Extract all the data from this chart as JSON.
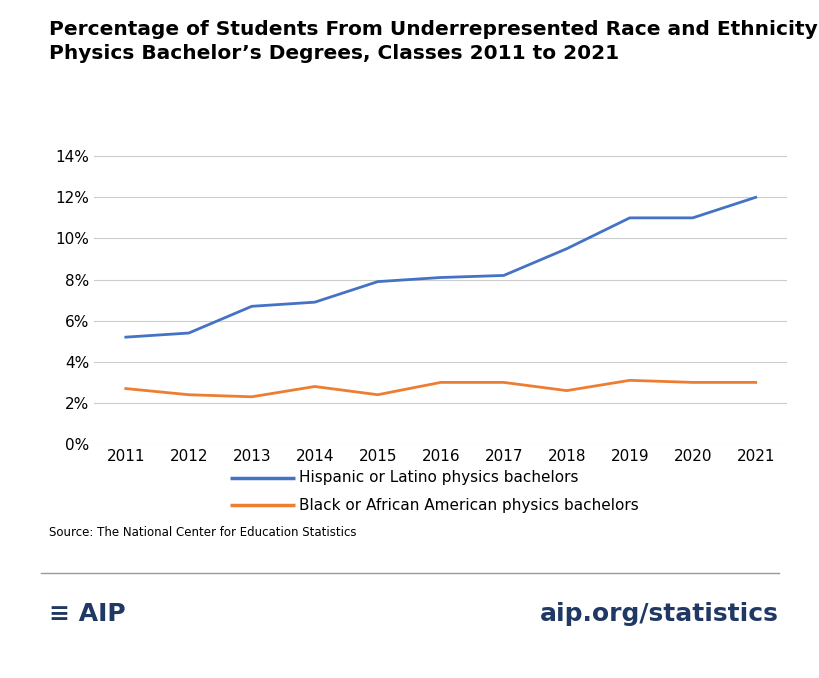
{
  "title_line1": "Percentage of Students From Underrepresented Race and Ethnicity Groups Earning",
  "title_line2": "Physics Bachelor’s Degrees, Classes 2011 to 2021",
  "years": [
    2011,
    2012,
    2013,
    2014,
    2015,
    2016,
    2017,
    2018,
    2019,
    2020,
    2021
  ],
  "hispanic": [
    5.2,
    5.4,
    6.7,
    6.9,
    7.9,
    8.1,
    8.2,
    9.5,
    11.0,
    11.0,
    12.0
  ],
  "black": [
    2.7,
    2.4,
    2.3,
    2.8,
    2.4,
    3.0,
    3.0,
    2.6,
    3.1,
    3.0,
    3.0
  ],
  "hispanic_color": "#4472C4",
  "black_color": "#ED7D31",
  "hispanic_label": "Hispanic or Latino physics bachelors",
  "black_label": "Black or African American physics bachelors",
  "ylim": [
    0,
    15
  ],
  "yticks": [
    0,
    2,
    4,
    6,
    8,
    10,
    12,
    14
  ],
  "source_text": "Source: The National Center for Education Statistics",
  "web_text": "aip.org/statistics",
  "background_color": "#ffffff",
  "line_width": 2.0,
  "grid_color": "#cccccc",
  "title_fontsize": 14.5,
  "legend_fontsize": 11,
  "tick_fontsize": 11,
  "source_fontsize": 8.5,
  "footer_color": "#1F3864",
  "footer_fontsize": 18
}
